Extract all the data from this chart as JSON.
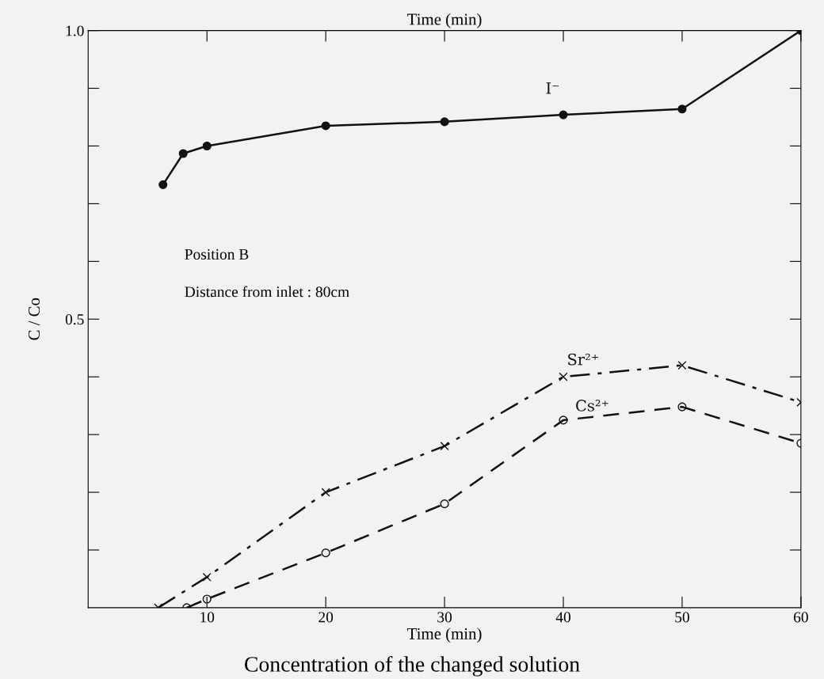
{
  "chart_data": {
    "type": "line",
    "xlabel": "Time (min)",
    "x2label": "Time (min)",
    "ylabel": "C / Co",
    "xlim": [
      0,
      60
    ],
    "xticks": [
      10,
      20,
      30,
      40,
      50,
      60
    ],
    "ylim": [
      0,
      1.0
    ],
    "yticks": [
      {
        "value": 0.1,
        "label": null
      },
      {
        "value": 0.2,
        "label": null
      },
      {
        "value": 0.3,
        "label": null
      },
      {
        "value": 0.4,
        "label": null
      },
      {
        "value": 0.5,
        "label": "0.5"
      },
      {
        "value": 0.6,
        "label": null
      },
      {
        "value": 0.7,
        "label": null
      },
      {
        "value": 0.8,
        "label": null
      },
      {
        "value": 0.9,
        "label": null
      },
      {
        "value": 1.0,
        "label": "1.0"
      }
    ],
    "grid": false,
    "series": [
      {
        "name": "I⁻",
        "color": "#111111",
        "marker": "circle",
        "line_style": "solid",
        "x": [
          6.3,
          8.0,
          10,
          20,
          30,
          40,
          50,
          60
        ],
        "values": [
          0.733,
          0.787,
          0.8,
          0.835,
          0.842,
          0.854,
          0.864,
          1.0
        ]
      },
      {
        "name": "Sr²⁺",
        "color": "#111111",
        "marker": "cross",
        "line_style": "dashdot",
        "x": [
          5.9,
          10,
          20,
          30,
          40,
          50,
          60
        ],
        "values": [
          0.0,
          0.053,
          0.2,
          0.28,
          0.4,
          0.42,
          0.356
        ]
      },
      {
        "name": "Cs²⁺",
        "color": "#111111",
        "marker": "open circle",
        "line_style": "dashed",
        "x": [
          8.3,
          10,
          20,
          30,
          40,
          50,
          60
        ],
        "values": [
          0.0,
          0.015,
          0.095,
          0.18,
          0.325,
          0.348,
          0.285
        ]
      }
    ],
    "annotations": [
      "Position B",
      "Distance from inlet : 80cm",
      "Concentration of the changed solution"
    ]
  }
}
